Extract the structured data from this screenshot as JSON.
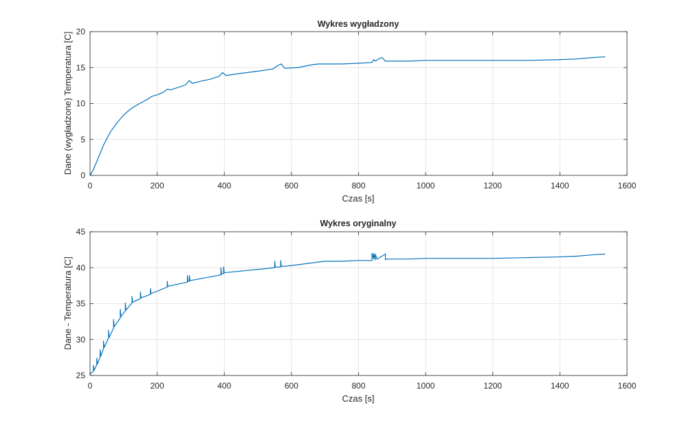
{
  "chart_data": [
    {
      "type": "line",
      "title": "Wykres wygładzony",
      "xlabel": "Czas [s]",
      "ylabel": "Dane (wygładzone) Temperatura [C]",
      "xlim": [
        0,
        1600
      ],
      "ylim": [
        0,
        20
      ],
      "xticks": [
        "0",
        "200",
        "400",
        "600",
        "800",
        "1000",
        "1200",
        "1400",
        "1600"
      ],
      "yticks": [
        "0",
        "5",
        "10",
        "15",
        "20"
      ],
      "grid": true,
      "line_color": "#0072BD",
      "series": [
        {
          "x": [
            0,
            10,
            25,
            40,
            60,
            80,
            100,
            120,
            140,
            160,
            175,
            185,
            200,
            220,
            230,
            240,
            260,
            285,
            295,
            305,
            330,
            360,
            385,
            395,
            405,
            450,
            500,
            545,
            560,
            570,
            580,
            620,
            650,
            680,
            700,
            750,
            800,
            840,
            845,
            850,
            860,
            870,
            880,
            885,
            950,
            1000,
            1100,
            1200,
            1300,
            1400,
            1450,
            1500,
            1535
          ],
          "y": [
            0.0,
            0.8,
            2.5,
            4.2,
            6.0,
            7.3,
            8.4,
            9.2,
            9.8,
            10.3,
            10.7,
            11.0,
            11.2,
            11.6,
            12.0,
            11.9,
            12.2,
            12.6,
            13.2,
            12.8,
            13.1,
            13.4,
            13.8,
            14.3,
            13.9,
            14.2,
            14.5,
            14.8,
            15.3,
            15.5,
            14.9,
            15.0,
            15.3,
            15.5,
            15.5,
            15.5,
            15.6,
            15.7,
            16.1,
            15.9,
            16.2,
            16.4,
            15.9,
            15.9,
            15.9,
            16.0,
            16.0,
            16.0,
            16.0,
            16.1,
            16.2,
            16.4,
            16.5
          ]
        }
      ]
    },
    {
      "type": "line",
      "title": "Wykres oryginalny",
      "xlabel": "Czas [s]",
      "ylabel": "Dane - Temperatura [C]",
      "xlim": [
        0,
        1600
      ],
      "ylim": [
        25,
        45
      ],
      "xticks": [
        "0",
        "200",
        "400",
        "600",
        "800",
        "1000",
        "1200",
        "1400",
        "1600"
      ],
      "yticks": [
        "25",
        "30",
        "35",
        "40",
        "45"
      ],
      "grid": true,
      "line_color": "#0072BD",
      "series": [
        {
          "x": [
            0,
            10,
            10,
            12,
            20,
            20,
            22,
            30,
            30,
            32,
            40,
            40,
            42,
            55,
            55,
            57,
            70,
            70,
            72,
            90,
            90,
            92,
            105,
            105,
            107,
            125,
            125,
            127,
            150,
            150,
            152,
            180,
            180,
            182,
            230,
            230,
            232,
            290,
            290,
            292,
            296,
            296,
            298,
            390,
            390,
            392,
            398,
            398,
            400,
            550,
            550,
            552,
            568,
            568,
            570,
            580,
            600,
            650,
            700,
            750,
            800,
            840,
            840,
            845,
            845,
            850,
            850,
            855,
            870,
            880,
            880,
            885,
            950,
            1000,
            1100,
            1200,
            1300,
            1400,
            1450,
            1500,
            1535
          ],
          "y": [
            25.2,
            25.6,
            26.4,
            25.7,
            26.5,
            27.4,
            26.6,
            27.6,
            28.6,
            27.7,
            28.7,
            29.8,
            28.9,
            30.2,
            31.3,
            30.3,
            31.6,
            32.8,
            31.8,
            33.0,
            34.2,
            33.2,
            34.0,
            35.1,
            34.1,
            35.1,
            36.0,
            35.2,
            35.7,
            36.6,
            35.8,
            36.3,
            37.1,
            36.4,
            37.3,
            38.1,
            37.4,
            38.0,
            38.9,
            38.1,
            38.1,
            38.9,
            38.2,
            39.0,
            40.0,
            39.1,
            39.2,
            40.1,
            39.3,
            40.0,
            40.9,
            40.1,
            40.1,
            41.0,
            40.2,
            40.2,
            40.3,
            40.6,
            40.9,
            40.9,
            41.0,
            41.0,
            42.0,
            41.2,
            42.0,
            41.1,
            41.9,
            41.2,
            41.6,
            41.9,
            41.1,
            41.2,
            41.2,
            41.3,
            41.3,
            41.3,
            41.4,
            41.5,
            41.6,
            41.8,
            41.9
          ]
        }
      ]
    }
  ]
}
